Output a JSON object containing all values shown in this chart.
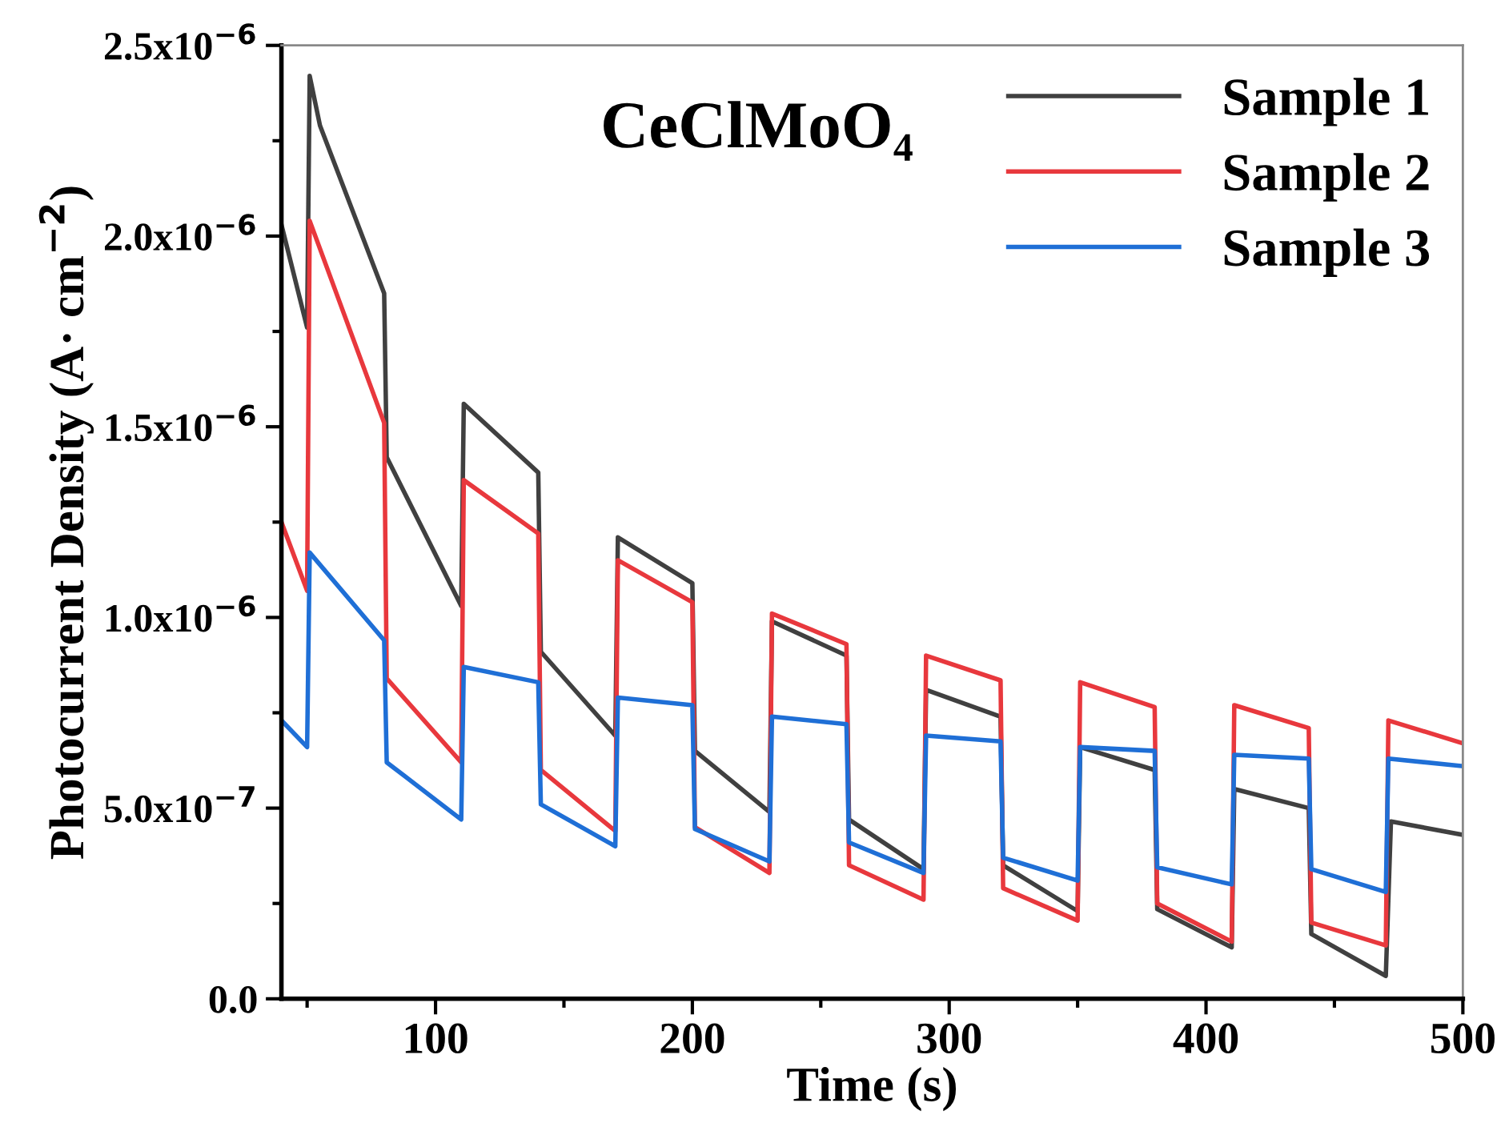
{
  "chart_data": {
    "type": "line",
    "title": "CeClMoO₄",
    "xlabel": "Time (s)",
    "ylabel": "Photocurrent Density (A· cm$^{−2}$)",
    "xlim": [
      40,
      500
    ],
    "xticks": [
      100,
      200,
      300,
      400,
      500
    ],
    "ylim": [
      0,
      2.5e-06
    ],
    "yticks": [
      {
        "value": 0,
        "label": "0.0"
      },
      {
        "value": 5e-07,
        "label": "5.0x10$^{−7}$"
      },
      {
        "value": 1e-06,
        "label": "1.0x10$^{−6}$"
      },
      {
        "value": 1.5e-06,
        "label": "1.5x10$^{−6}$"
      },
      {
        "value": 2e-06,
        "label": "2.0x10$^{−6}$"
      },
      {
        "value": 2.5e-06,
        "label": "2.5x10$^{−6}$"
      }
    ],
    "legend": "top right",
    "grid": false,
    "marker": "none",
    "line_style": "solid",
    "series": [
      {
        "name": "Sample 1",
        "color": "#404040",
        "x": [
          40,
          50,
          51,
          55,
          80,
          81,
          110,
          111,
          140,
          141,
          170,
          171,
          200,
          201,
          230,
          231,
          260,
          261,
          290,
          291,
          320,
          321,
          350,
          351,
          380,
          381,
          410,
          411,
          440,
          441,
          470,
          472,
          500
        ],
        "values": [
          2.03e-06,
          1.76e-06,
          2.42e-06,
          2.29e-06,
          1.85e-06,
          1.42e-06,
          1.03e-06,
          1.56e-06,
          1.38e-06,
          9.1e-07,
          6.9e-07,
          1.21e-06,
          1.09e-06,
          6.5e-07,
          4.9e-07,
          9.9e-07,
          9e-07,
          4.7e-07,
          3.4e-07,
          8.1e-07,
          7.4e-07,
          3.5e-07,
          2.3e-07,
          6.6e-07,
          6e-07,
          2.35e-07,
          1.35e-07,
          5.5e-07,
          5e-07,
          1.7e-07,
          6e-08,
          4.65e-07,
          4.3e-07
        ]
      },
      {
        "name": "Sample 2",
        "color": "#e8383d",
        "x": [
          40,
          50,
          51,
          80,
          81,
          110,
          111,
          140,
          141,
          170,
          171,
          200,
          201,
          230,
          231,
          260,
          261,
          290,
          291,
          320,
          321,
          350,
          351,
          380,
          381,
          410,
          411,
          440,
          441,
          470,
          471,
          500
        ],
        "values": [
          1.25e-06,
          1.07e-06,
          2.04e-06,
          1.51e-06,
          8.4e-07,
          6.2e-07,
          1.36e-06,
          1.22e-06,
          6e-07,
          4.4e-07,
          1.15e-06,
          1.04e-06,
          4.5e-07,
          3.3e-07,
          1.01e-06,
          9.3e-07,
          3.5e-07,
          2.6e-07,
          9e-07,
          8.35e-07,
          2.9e-07,
          2.05e-07,
          8.3e-07,
          7.65e-07,
          2.5e-07,
          1.5e-07,
          7.7e-07,
          7.1e-07,
          2e-07,
          1.4e-07,
          7.3e-07,
          6.7e-07
        ]
      },
      {
        "name": "Sample 3",
        "color": "#1f6fd6",
        "x": [
          40,
          50,
          51,
          80,
          81,
          110,
          111,
          140,
          141,
          170,
          171,
          200,
          201,
          230,
          231,
          260,
          261,
          290,
          291,
          320,
          321,
          350,
          351,
          380,
          381,
          410,
          411,
          440,
          441,
          470,
          471,
          500
        ],
        "values": [
          7.3e-07,
          6.6e-07,
          1.17e-06,
          9.4e-07,
          6.2e-07,
          4.7e-07,
          8.7e-07,
          8.3e-07,
          5.1e-07,
          4e-07,
          7.9e-07,
          7.7e-07,
          4.45e-07,
          3.6e-07,
          7.4e-07,
          7.2e-07,
          4.1e-07,
          3.3e-07,
          6.9e-07,
          6.75e-07,
          3.7e-07,
          3.1e-07,
          6.6e-07,
          6.5e-07,
          3.45e-07,
          3e-07,
          6.4e-07,
          6.3e-07,
          3.4e-07,
          2.8e-07,
          6.3e-07,
          6.1e-07
        ]
      }
    ]
  }
}
